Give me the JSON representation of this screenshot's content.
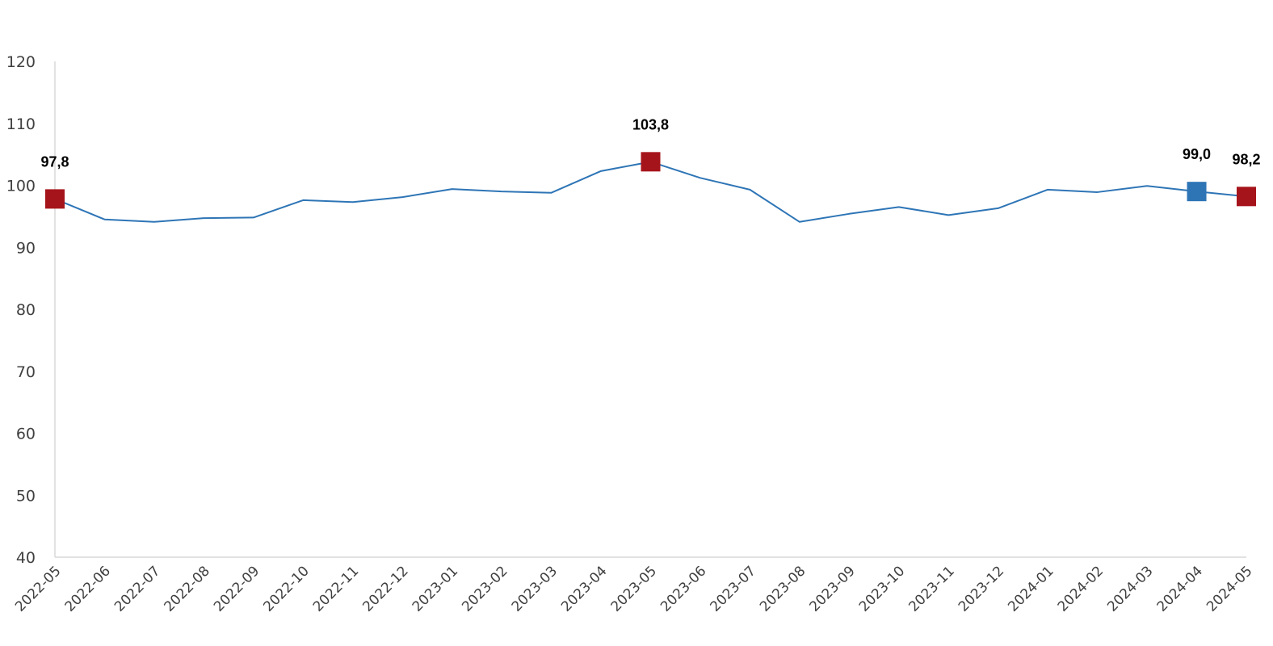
{
  "chart_data": {
    "type": "line",
    "title": "",
    "xlabel": "",
    "ylabel": "",
    "ylim": [
      40,
      120
    ],
    "yticks": [
      40,
      50,
      60,
      70,
      80,
      90,
      100,
      110,
      120
    ],
    "grid": false,
    "categories": [
      "2022-05",
      "2022-06",
      "2022-07",
      "2022-08",
      "2022-09",
      "2022-10",
      "2022-11",
      "2022-12",
      "2023-01",
      "2023-02",
      "2023-03",
      "2023-04",
      "2023-05",
      "2023-06",
      "2023-07",
      "2023-08",
      "2023-09",
      "2023-10",
      "2023-11",
      "2023-12",
      "2024-01",
      "2024-02",
      "2024-03",
      "2024-04",
      "2024-05"
    ],
    "series": [
      {
        "values": [
          97.8,
          94.5,
          94.1,
          94.7,
          94.8,
          97.6,
          97.3,
          98.1,
          99.4,
          99.0,
          98.8,
          102.3,
          103.8,
          101.2,
          99.3,
          94.1,
          95.4,
          96.5,
          95.2,
          96.3,
          99.3,
          98.9,
          99.9,
          99.0,
          98.2
        ],
        "color": "#2E75B6"
      }
    ],
    "highlights": [
      {
        "category": "2022-05",
        "value": 97.8,
        "label": "97,8",
        "color": "#A6141B"
      },
      {
        "category": "2023-05",
        "value": 103.8,
        "label": "103,8",
        "color": "#A6141B"
      },
      {
        "category": "2024-04",
        "value": 99.0,
        "label": "99,0",
        "color": "#2E75B6"
      },
      {
        "category": "2024-05",
        "value": 98.2,
        "label": "98,2",
        "color": "#A6141B"
      }
    ],
    "axis_color": "#D9D9D9"
  }
}
